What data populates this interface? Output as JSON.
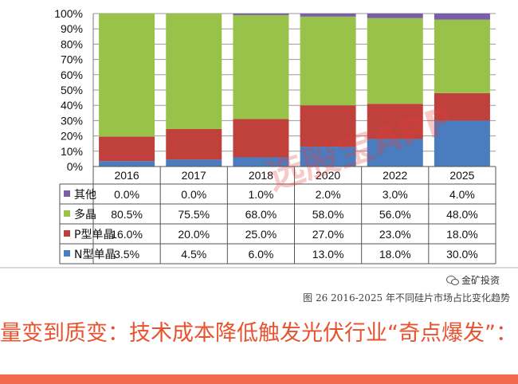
{
  "chart_data": {
    "type": "bar",
    "stacked": true,
    "categories": [
      "2016",
      "2017",
      "2018",
      "2020",
      "2022",
      "2025"
    ],
    "series": [
      {
        "name": "N型单晶",
        "values": [
          3.5,
          4.5,
          6.0,
          13.0,
          18.0,
          30.0
        ],
        "labels": [
          "3.5%",
          "4.5%",
          "6.0%",
          "13.0%",
          "18.0%",
          "30.0%"
        ],
        "color": "#4a7dc0"
      },
      {
        "name": "P型单晶",
        "values": [
          16.0,
          20.0,
          25.0,
          27.0,
          23.0,
          18.0
        ],
        "labels": [
          "16.0%",
          "20.0%",
          "25.0%",
          "27.0%",
          "23.0%",
          "18.0%"
        ],
        "color": "#c0403c"
      },
      {
        "name": "多晶",
        "values": [
          80.5,
          75.5,
          68.0,
          58.0,
          56.0,
          48.0
        ],
        "labels": [
          "80.5%",
          "75.5%",
          "68.0%",
          "58.0%",
          "56.0%",
          "48.0%"
        ],
        "color": "#98c24a"
      },
      {
        "name": "其他",
        "values": [
          0.0,
          0.0,
          1.0,
          2.0,
          3.0,
          4.0
        ],
        "labels": [
          "0.0%",
          "0.0%",
          "1.0%",
          "2.0%",
          "3.0%",
          "4.0%"
        ],
        "color": "#7a5ea8"
      }
    ],
    "table_row_order": [
      "其他",
      "多晶",
      "P型单晶",
      "N型单晶"
    ],
    "y_ticks": [
      "0%",
      "10%",
      "20%",
      "30%",
      "40%",
      "50%",
      "60%",
      "70%",
      "80%",
      "90%",
      "100%"
    ],
    "ylim": [
      0,
      100
    ],
    "grid": true,
    "legend_placement": "data table below chart"
  },
  "caption": "图 26 2016-2025 年不同硅片市场占比变化趋势",
  "wechat_account": "金矿投资",
  "watermark_text": "选股宝APP",
  "headline": "量变到质变：技术成本降低触发光伏行业“奇点爆发”："
}
